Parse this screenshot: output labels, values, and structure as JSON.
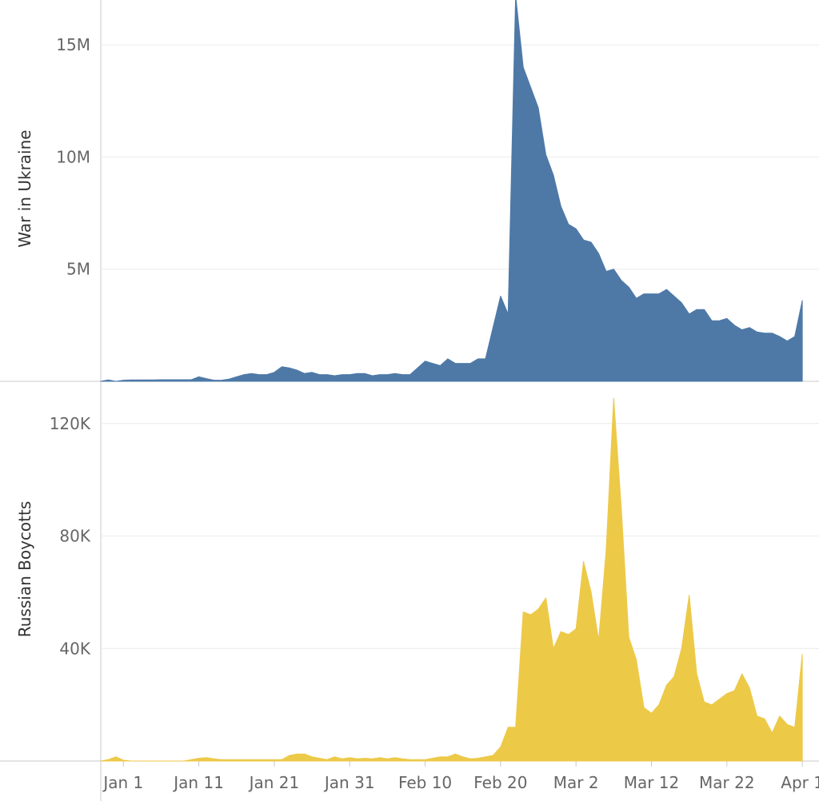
{
  "chart_data": [
    {
      "type": "area",
      "ylabel": "War in Ukraine",
      "color": "#4e79a7",
      "ylim": [
        0,
        17000000
      ],
      "yticks": [
        {
          "v": 5000000,
          "label": "5M"
        },
        {
          "v": 10000000,
          "label": "10M"
        },
        {
          "v": 15000000,
          "label": "15M"
        }
      ],
      "grid": true,
      "x_start": "2021-12-29",
      "x_end": "2022-04-03",
      "values": [
        0,
        60000,
        0,
        50000,
        60000,
        60000,
        60000,
        60000,
        70000,
        70000,
        70000,
        70000,
        70000,
        200000,
        120000,
        50000,
        50000,
        100000,
        200000,
        300000,
        350000,
        300000,
        300000,
        400000,
        650000,
        600000,
        500000,
        350000,
        400000,
        300000,
        300000,
        250000,
        300000,
        300000,
        350000,
        350000,
        250000,
        300000,
        300000,
        350000,
        300000,
        300000,
        600000,
        900000,
        800000,
        700000,
        1000000,
        800000,
        800000,
        800000,
        1000000,
        1000000,
        2400000,
        3800000,
        3000000,
        17200000,
        14000000,
        13100000,
        12200000,
        10100000,
        9200000,
        7800000,
        7000000,
        6800000,
        6300000,
        6200000,
        5700000,
        4900000,
        5000000,
        4500000,
        4200000,
        3700000,
        3900000,
        3900000,
        3900000,
        4100000,
        3800000,
        3500000,
        3000000,
        3200000,
        3200000,
        2700000,
        2700000,
        2800000,
        2500000,
        2300000,
        2400000,
        2200000,
        2150000,
        2150000,
        2000000,
        1800000,
        2000000,
        3600000
      ]
    },
    {
      "type": "area",
      "ylabel": "Russian Boycotts",
      "color": "#edc948",
      "ylim": [
        0,
        135000
      ],
      "yticks": [
        {
          "v": 40000,
          "label": "40K"
        },
        {
          "v": 80000,
          "label": "80K"
        },
        {
          "v": 120000,
          "label": "120K"
        }
      ],
      "grid": true,
      "x_start": "2021-12-29",
      "x_end": "2022-04-03",
      "values": [
        0,
        500,
        1500,
        300,
        0,
        0,
        0,
        0,
        0,
        0,
        0,
        0,
        500,
        1000,
        1200,
        800,
        500,
        500,
        500,
        500,
        500,
        500,
        500,
        500,
        500,
        2000,
        2500,
        2500,
        1500,
        1000,
        500,
        1500,
        800,
        1200,
        800,
        1000,
        800,
        1200,
        800,
        1200,
        800,
        500,
        500,
        500,
        1000,
        1500,
        1500,
        2500,
        1500,
        800,
        1000,
        1500,
        2000,
        5000,
        12000,
        12000,
        53000,
        52000,
        54000,
        58000,
        40000,
        46000,
        45000,
        47000,
        71000,
        60000,
        43000,
        75000,
        129000,
        90000,
        44000,
        36000,
        19000,
        17000,
        20000,
        27000,
        30000,
        40000,
        59000,
        31000,
        21000,
        20000,
        22000,
        24000,
        25000,
        31000,
        26000,
        16000,
        15000,
        10000,
        16000,
        13000,
        12000,
        38000
      ]
    }
  ],
  "x_axis": {
    "ticks": [
      "Jan 1",
      "Jan 11",
      "Jan 21",
      "Jan 31",
      "Feb 10",
      "Feb 20",
      "Mar 2",
      "Mar 12",
      "Mar 22",
      "Apr 1"
    ]
  }
}
